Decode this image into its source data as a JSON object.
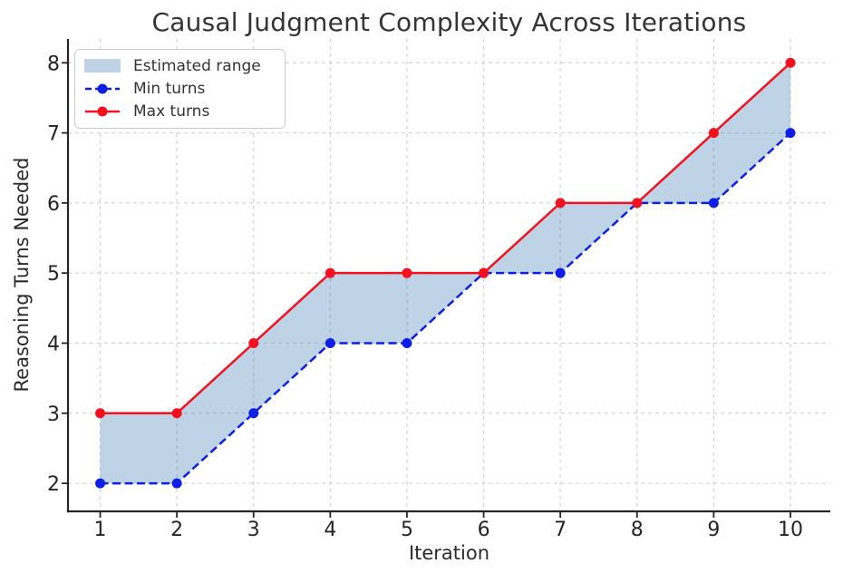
{
  "chart_data": {
    "type": "line",
    "title": "Causal Judgment Complexity Across Iterations",
    "xlabel": "Iteration",
    "ylabel": "Reasoning Turns Needed",
    "x": [
      1,
      2,
      3,
      4,
      5,
      6,
      7,
      8,
      9,
      10
    ],
    "series": [
      {
        "name": "Min turns",
        "values": [
          2,
          2,
          3,
          4,
          4,
          5,
          5,
          6,
          6,
          7
        ],
        "color": "#0d1ee8",
        "style": "dashed",
        "marker": "circle"
      },
      {
        "name": "Max turns",
        "values": [
          3,
          3,
          4,
          5,
          5,
          5,
          6,
          6,
          7,
          8
        ],
        "color": "#f5101d",
        "style": "solid",
        "marker": "circle"
      }
    ],
    "band": {
      "label": "Estimated range",
      "lower": "Min turns",
      "upper": "Max turns",
      "color": "rgba(70,130,180,0.35)"
    },
    "legend": {
      "position": "upper left",
      "entries": [
        {
          "label": "Estimated range",
          "swatch": "patch"
        },
        {
          "label": "Min turns",
          "swatch": "dashed-line-marker"
        },
        {
          "label": "Max turns",
          "swatch": "solid-line-marker"
        }
      ]
    },
    "xticks": [
      "1",
      "2",
      "3",
      "4",
      "5",
      "6",
      "7",
      "8",
      "9",
      "10"
    ],
    "yticks": [
      "2",
      "3",
      "4",
      "5",
      "6",
      "7",
      "8"
    ],
    "xtick_values": [
      1,
      2,
      3,
      4,
      5,
      6,
      7,
      8,
      9,
      10
    ],
    "ytick_values": [
      2,
      3,
      4,
      5,
      6,
      7,
      8
    ],
    "xlim": [
      0.58,
      10.52
    ],
    "ylim": [
      1.6,
      8.34
    ],
    "grid": {
      "visible": true,
      "style": "dashed",
      "color": "#d2d2d2"
    },
    "axis_color": "#262626",
    "tick_label_color": "#262626"
  }
}
